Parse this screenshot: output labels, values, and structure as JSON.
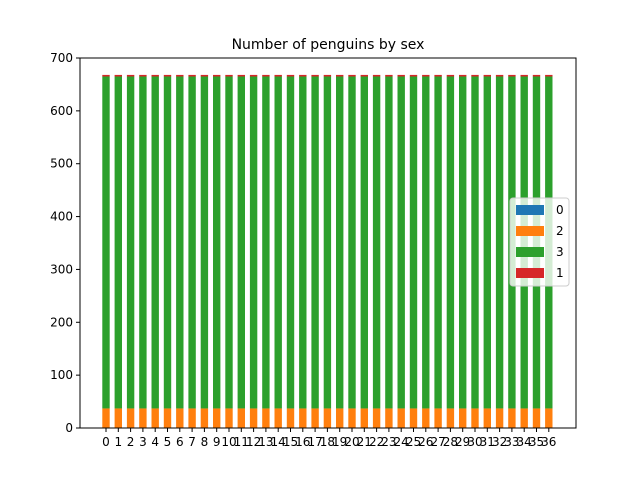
{
  "chart_data": {
    "type": "bar",
    "stacked": true,
    "title": "Number of penguins by sex",
    "xlabel": "",
    "ylabel": "",
    "ylim": [
      0,
      700
    ],
    "yticks": [
      0,
      100,
      200,
      300,
      400,
      500,
      600,
      700
    ],
    "categories": [
      "0",
      "1",
      "2",
      "3",
      "4",
      "5",
      "6",
      "7",
      "8",
      "9",
      "10",
      "11",
      "12",
      "13",
      "14",
      "15",
      "16",
      "17",
      "18",
      "19",
      "20",
      "21",
      "22",
      "23",
      "24",
      "25",
      "26",
      "27",
      "28",
      "29",
      "30",
      "31",
      "32",
      "33",
      "34",
      "35",
      "36"
    ],
    "series": [
      {
        "name": "0",
        "color": "#1f77b4",
        "values": [
          0,
          0,
          0,
          0,
          0,
          0,
          0,
          0,
          0,
          0,
          0,
          0,
          0,
          0,
          0,
          0,
          0,
          0,
          0,
          0,
          0,
          0,
          0,
          0,
          0,
          0,
          0,
          0,
          0,
          0,
          0,
          0,
          0,
          0,
          0,
          0,
          0
        ]
      },
      {
        "name": "2",
        "color": "#ff7f0e",
        "values": [
          37,
          37,
          37,
          37,
          37,
          37,
          37,
          37,
          37,
          37,
          37,
          37,
          37,
          37,
          37,
          37,
          37,
          37,
          37,
          37,
          37,
          37,
          37,
          37,
          37,
          37,
          37,
          37,
          37,
          37,
          37,
          37,
          37,
          37,
          37,
          37,
          37
        ]
      },
      {
        "name": "3",
        "color": "#2ca02c",
        "values": [
          628,
          628,
          628,
          628,
          628,
          628,
          628,
          628,
          628,
          628,
          628,
          628,
          628,
          628,
          628,
          628,
          628,
          628,
          628,
          628,
          628,
          628,
          628,
          628,
          628,
          628,
          628,
          628,
          628,
          628,
          628,
          628,
          628,
          628,
          628,
          628,
          628
        ]
      },
      {
        "name": "1",
        "color": "#d62728",
        "values": [
          3,
          3,
          3,
          3,
          3,
          3,
          3,
          3,
          3,
          3,
          3,
          3,
          3,
          3,
          3,
          3,
          3,
          3,
          3,
          3,
          3,
          3,
          3,
          3,
          3,
          3,
          3,
          3,
          3,
          3,
          3,
          3,
          3,
          3,
          3,
          3,
          3
        ]
      }
    ],
    "grid": false,
    "legend_position": "center-right"
  }
}
